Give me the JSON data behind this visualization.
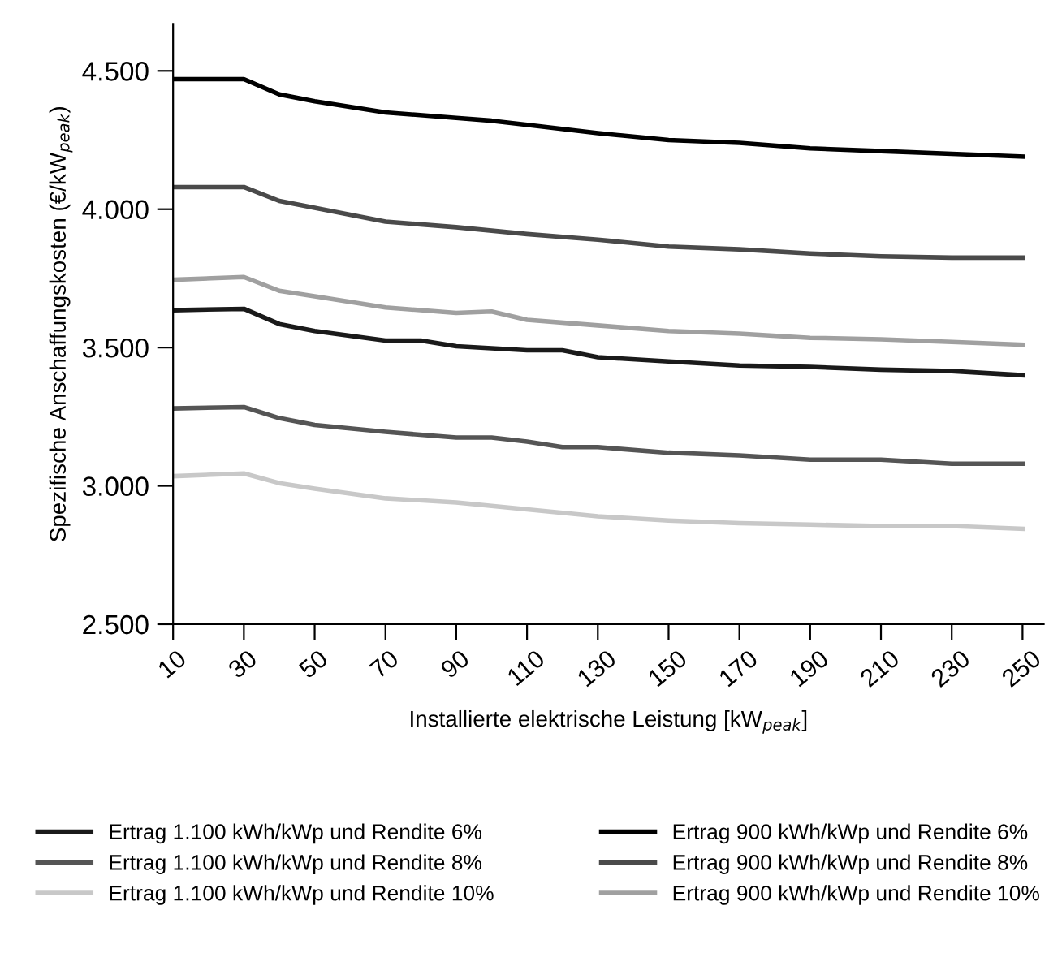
{
  "chart_data": {
    "type": "line",
    "xlabel": "Installierte elektrische Leistung [kW$_{peak}$]",
    "ylabel": "Spezifische Anschaffungskosten (€/kW$_{peak}$)",
    "xlim": [
      10,
      256
    ],
    "xticks": [
      10,
      30,
      50,
      70,
      90,
      110,
      130,
      150,
      170,
      190,
      210,
      230,
      250
    ],
    "ylim": [
      2500,
      4670
    ],
    "yticks": [
      {
        "value": 2500,
        "label": "2.500"
      },
      {
        "value": 3000,
        "label": "3.000"
      },
      {
        "value": 3500,
        "label": "3.500"
      },
      {
        "value": 4000,
        "label": "4.000"
      },
      {
        "value": 4500,
        "label": "4.500"
      }
    ],
    "grid": false,
    "legend": "bottom",
    "marker": "none",
    "line_style": "solid",
    "series": [
      {
        "name": "Ertrag 1.100 kWh/kWp und Rendite 6%",
        "color": "#1a1a1a",
        "x": [
          10,
          30,
          40,
          50,
          70,
          80,
          90,
          110,
          120,
          130,
          150,
          170,
          190,
          210,
          230,
          250
        ],
        "values": [
          3635,
          3640,
          3585,
          3560,
          3525,
          3525,
          3505,
          3490,
          3490,
          3465,
          3450,
          3435,
          3430,
          3420,
          3415,
          3400
        ]
      },
      {
        "name": "Ertrag 1.100 kWh/kWp und Rendite 8%",
        "color": "#555555",
        "x": [
          10,
          30,
          40,
          50,
          70,
          90,
          100,
          110,
          120,
          130,
          150,
          170,
          190,
          210,
          230,
          250
        ],
        "values": [
          3280,
          3285,
          3245,
          3220,
          3195,
          3175,
          3175,
          3160,
          3140,
          3140,
          3120,
          3110,
          3095,
          3095,
          3080,
          3080
        ]
      },
      {
        "name": "Ertrag 1.100 kWh/kWp und Rendite 10%",
        "color": "#c8c8c8",
        "x": [
          10,
          30,
          40,
          50,
          70,
          90,
          110,
          130,
          150,
          170,
          190,
          210,
          230,
          250
        ],
        "values": [
          3035,
          3045,
          3010,
          2990,
          2955,
          2940,
          2915,
          2890,
          2875,
          2865,
          2860,
          2855,
          2855,
          2845
        ]
      },
      {
        "name": "Ertrag 900 kWh/kWp und Rendite 6%",
        "color": "#000000",
        "x": [
          10,
          30,
          40,
          50,
          70,
          90,
          100,
          110,
          130,
          150,
          170,
          190,
          210,
          230,
          250
        ],
        "values": [
          4470,
          4470,
          4415,
          4390,
          4350,
          4330,
          4320,
          4305,
          4275,
          4250,
          4240,
          4220,
          4210,
          4200,
          4190
        ]
      },
      {
        "name": "Ertrag 900 kWh/kWp und Rendite 8%",
        "color": "#4a4a4a",
        "x": [
          10,
          30,
          40,
          50,
          70,
          90,
          110,
          130,
          150,
          170,
          190,
          210,
          230,
          250
        ],
        "values": [
          4080,
          4080,
          4030,
          4005,
          3955,
          3935,
          3910,
          3890,
          3865,
          3855,
          3840,
          3830,
          3825,
          3825
        ]
      },
      {
        "name": "Ertrag 900 kWh/kWp und Rendite 10%",
        "color": "#a0a0a0",
        "x": [
          10,
          30,
          40,
          50,
          70,
          90,
          100,
          110,
          130,
          150,
          170,
          190,
          210,
          230,
          250
        ],
        "values": [
          3745,
          3755,
          3705,
          3685,
          3645,
          3625,
          3630,
          3600,
          3580,
          3560,
          3550,
          3535,
          3530,
          3520,
          3510
        ]
      }
    ]
  }
}
